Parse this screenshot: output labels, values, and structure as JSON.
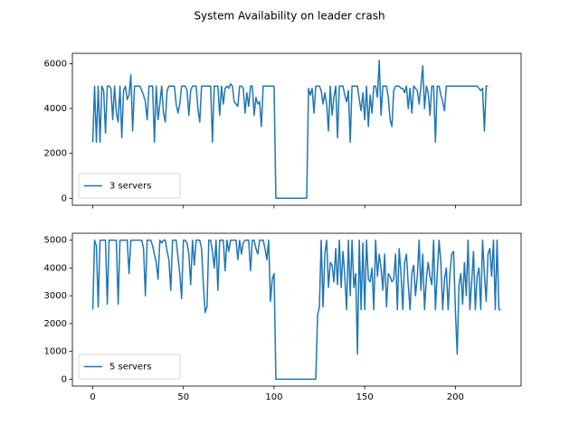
{
  "title": "System Availability on leader crash",
  "chart_data": [
    {
      "type": "line",
      "x": [
        0,
        1,
        2,
        3,
        4,
        5,
        6,
        7,
        8,
        9,
        10,
        11,
        12,
        13,
        14,
        15,
        16,
        17,
        18,
        19,
        20,
        21,
        22,
        23,
        24,
        25,
        26,
        27,
        28,
        29,
        30,
        31,
        32,
        33,
        34,
        35,
        36,
        37,
        38,
        39,
        40,
        41,
        42,
        43,
        44,
        45,
        46,
        47,
        48,
        49,
        50,
        51,
        52,
        53,
        54,
        55,
        56,
        57,
        58,
        59,
        60,
        61,
        62,
        63,
        64,
        65,
        66,
        67,
        68,
        69,
        70,
        71,
        72,
        73,
        74,
        75,
        76,
        77,
        78,
        79,
        80,
        81,
        82,
        83,
        84,
        85,
        86,
        87,
        88,
        89,
        90,
        91,
        92,
        93,
        94,
        95,
        96,
        97,
        98,
        99,
        100,
        101,
        102,
        103,
        104,
        105,
        106,
        107,
        108,
        109,
        110,
        111,
        112,
        113,
        114,
        115,
        116,
        117,
        118,
        119,
        120,
        121,
        122,
        123,
        124,
        125,
        126,
        127,
        128,
        129,
        130,
        131,
        132,
        133,
        134,
        135,
        136,
        137,
        138,
        139,
        140,
        141,
        142,
        143,
        144,
        145,
        146,
        147,
        148,
        149,
        150,
        151,
        152,
        153,
        154,
        155,
        156,
        157,
        158,
        159,
        160,
        161,
        162,
        163,
        164,
        165,
        166,
        167,
        168,
        169,
        170,
        171,
        172,
        173,
        174,
        175,
        176,
        177,
        178,
        179,
        180,
        181,
        182,
        183,
        184,
        185,
        186,
        187,
        188,
        189,
        190,
        191,
        192,
        193,
        194,
        195,
        196,
        197,
        198,
        199,
        200,
        201,
        202,
        203,
        204,
        205,
        206,
        207,
        208,
        209,
        210,
        211,
        212,
        213,
        214,
        215,
        216,
        217,
        218
      ],
      "series": [
        {
          "name": "3 servers",
          "color": "#1f77b4",
          "values": [
            2500,
            5000,
            2500,
            5000,
            2500,
            5000,
            4800,
            2900,
            5000,
            5000,
            4900,
            3500,
            5000,
            3800,
            3400,
            5000,
            2700,
            4800,
            5000,
            4400,
            4600,
            5500,
            3000,
            5000,
            5000,
            5000,
            5000,
            4800,
            4600,
            4300,
            3500,
            5000,
            5000,
            5000,
            2500,
            5000,
            3500,
            4200,
            5000,
            3800,
            3400,
            4800,
            5000,
            5000,
            5000,
            5000,
            4200,
            3800,
            4200,
            5000,
            5000,
            5000,
            4800,
            3700,
            4800,
            5000,
            5000,
            5000,
            4000,
            3400,
            5000,
            5000,
            5000,
            5000,
            5000,
            5000,
            2500,
            5000,
            5000,
            5000,
            3700,
            5000,
            4200,
            4900,
            5000,
            4900,
            5100,
            5000,
            4300,
            4200,
            4100,
            5000,
            5000,
            4900,
            3800,
            4700,
            4100,
            5000,
            5000,
            3700,
            4500,
            4200,
            4300,
            3200,
            5000,
            5000,
            5000,
            5000,
            5000,
            5000,
            5000,
            0,
            0,
            0,
            0,
            0,
            0,
            0,
            0,
            0,
            0,
            0,
            0,
            0,
            0,
            0,
            0,
            0,
            0,
            4900,
            4600,
            4900,
            3800,
            5000,
            5000,
            5000,
            4800,
            4200,
            4700,
            4200,
            3000,
            5000,
            3700,
            4500,
            5000,
            2700,
            5000,
            5000,
            5000,
            4600,
            4300,
            4800,
            2500,
            5000,
            5000,
            5000,
            5000,
            4400,
            3900,
            4700,
            3500,
            5000,
            3200,
            4600,
            3800,
            5000,
            5000,
            4500,
            6150,
            3700,
            5000,
            5000,
            5000,
            4500,
            3500,
            3200,
            4800,
            5000,
            5000,
            5000,
            4900,
            4900,
            4700,
            5000,
            4000,
            4900,
            3800,
            5000,
            4900,
            4800,
            4200,
            5000,
            5900,
            4000,
            5000,
            4700,
            3700,
            5000,
            5000,
            2500,
            5000,
            5000,
            4600,
            4300,
            3900,
            5000,
            5000,
            5000,
            5000,
            5000,
            5000,
            5000,
            5000,
            5000,
            5000,
            5000,
            5000,
            5000,
            5000,
            5000,
            5000,
            5000,
            5000,
            4900,
            4800,
            4900,
            3000,
            5000,
            5000
          ]
        }
      ],
      "xlim": [
        -11.25,
        236.25
      ],
      "xticks": [
        0,
        50,
        100,
        150,
        200
      ],
      "ylim": [
        -310,
        6460
      ],
      "yticks": [
        0,
        2000,
        4000,
        6000
      ],
      "legend": "lower left"
    },
    {
      "type": "line",
      "x": [
        0,
        1,
        2,
        3,
        4,
        5,
        6,
        7,
        8,
        9,
        10,
        11,
        12,
        13,
        14,
        15,
        16,
        17,
        18,
        19,
        20,
        21,
        22,
        23,
        24,
        25,
        26,
        27,
        28,
        29,
        30,
        31,
        32,
        33,
        34,
        35,
        36,
        37,
        38,
        39,
        40,
        41,
        42,
        43,
        44,
        45,
        46,
        47,
        48,
        49,
        50,
        51,
        52,
        53,
        54,
        55,
        56,
        57,
        58,
        59,
        60,
        61,
        62,
        63,
        64,
        65,
        66,
        67,
        68,
        69,
        70,
        71,
        72,
        73,
        74,
        75,
        76,
        77,
        78,
        79,
        80,
        81,
        82,
        83,
        84,
        85,
        86,
        87,
        88,
        89,
        90,
        91,
        92,
        93,
        94,
        95,
        96,
        97,
        98,
        99,
        100,
        101,
        102,
        103,
        104,
        105,
        106,
        107,
        108,
        109,
        110,
        111,
        112,
        113,
        114,
        115,
        116,
        117,
        118,
        119,
        120,
        121,
        122,
        123,
        124,
        125,
        126,
        127,
        128,
        129,
        130,
        131,
        132,
        133,
        134,
        135,
        136,
        137,
        138,
        139,
        140,
        141,
        142,
        143,
        144,
        145,
        146,
        147,
        148,
        149,
        150,
        151,
        152,
        153,
        154,
        155,
        156,
        157,
        158,
        159,
        160,
        161,
        162,
        163,
        164,
        165,
        166,
        167,
        168,
        169,
        170,
        171,
        172,
        173,
        174,
        175,
        176,
        177,
        178,
        179,
        180,
        181,
        182,
        183,
        184,
        185,
        186,
        187,
        188,
        189,
        190,
        191,
        192,
        193,
        194,
        195,
        196,
        197,
        198,
        199,
        200,
        201,
        202,
        203,
        204,
        205,
        206,
        207,
        208,
        209,
        210,
        211,
        212,
        213,
        214,
        215,
        216,
        217,
        218,
        219,
        220,
        221,
        222,
        223,
        224,
        225
      ],
      "series": [
        {
          "name": "5 servers",
          "color": "#1f77b4",
          "values": [
            2500,
            5000,
            4800,
            2600,
            5000,
            5000,
            5000,
            5000,
            2700,
            5000,
            5000,
            5000,
            5000,
            5000,
            2700,
            5000,
            5000,
            5000,
            5000,
            5000,
            3800,
            5000,
            5000,
            5000,
            5000,
            5000,
            5000,
            5000,
            4700,
            3000,
            5000,
            5000,
            5000,
            4800,
            4500,
            4200,
            3600,
            5000,
            4900,
            5000,
            5000,
            4600,
            4300,
            3200,
            5000,
            5000,
            5000,
            4400,
            3800,
            2900,
            5000,
            5000,
            4900,
            4500,
            3400,
            5000,
            4100,
            5000,
            5000,
            5000,
            4700,
            3400,
            2400,
            2600,
            5000,
            5000,
            4600,
            4000,
            5000,
            3200,
            5000,
            5000,
            5000,
            3900,
            5000,
            4600,
            5000,
            5000,
            5000,
            5000,
            4300,
            5000,
            4500,
            4900,
            5000,
            5000,
            5000,
            3900,
            5000,
            5000,
            4700,
            4500,
            5000,
            5000,
            5000,
            4700,
            4300,
            5000,
            2800,
            3600,
            3800,
            0,
            0,
            0,
            0,
            0,
            0,
            0,
            0,
            0,
            0,
            0,
            0,
            0,
            0,
            0,
            0,
            0,
            0,
            0,
            0,
            0,
            0,
            0,
            2300,
            2600,
            5000,
            2600,
            4500,
            5000,
            3300,
            4200,
            4100,
            3500,
            4700,
            3400,
            5000,
            3300,
            4600,
            3700,
            2500,
            5000,
            3000,
            5000,
            3300,
            3800,
            900,
            5000,
            2500,
            4900,
            2500,
            5000,
            3600,
            3500,
            4000,
            2500,
            5000,
            3700,
            4500,
            4000,
            3200,
            4500,
            2600,
            3800,
            3700,
            3500,
            3600,
            4500,
            2500,
            4700,
            3800,
            2500,
            4200,
            4500,
            3400,
            2500,
            3800,
            4100,
            3000,
            3700,
            5000,
            3200,
            4500,
            2500,
            3600,
            4200,
            3700,
            3400,
            5000,
            2500,
            3800,
            5000,
            4200,
            2500,
            3600,
            4000,
            2500,
            3800,
            4500,
            4600,
            2500,
            900,
            3400,
            3800,
            2700,
            4200,
            3000,
            5000,
            2500,
            3500,
            4600,
            2500,
            3700,
            4000,
            2500,
            5000,
            3800,
            2800,
            4500,
            4700,
            3700,
            5000,
            2500,
            5000,
            2500,
            2500
          ]
        }
      ],
      "xlim": [
        -11.25,
        236.25
      ],
      "xticks": [
        0,
        50,
        100,
        150,
        200
      ],
      "ylim": [
        -250,
        5250
      ],
      "yticks": [
        0,
        1000,
        2000,
        3000,
        4000,
        5000
      ],
      "legend": "lower left"
    }
  ]
}
